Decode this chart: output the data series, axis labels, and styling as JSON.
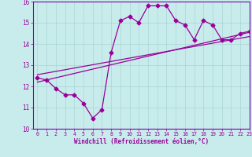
{
  "xlabel": "Windchill (Refroidissement éolien,°C)",
  "background_color": "#c8ecec",
  "grid_color": "#aad4d4",
  "line_color": "#990099",
  "spine_color": "#7700aa",
  "x_data": [
    0,
    1,
    2,
    3,
    4,
    5,
    6,
    7,
    8,
    9,
    10,
    11,
    12,
    13,
    14,
    15,
    16,
    17,
    18,
    19,
    20,
    21,
    22,
    23
  ],
  "y_data": [
    12.4,
    12.3,
    11.9,
    11.6,
    11.6,
    11.2,
    10.5,
    10.9,
    13.6,
    15.1,
    15.3,
    15.0,
    15.8,
    15.8,
    15.8,
    15.1,
    14.9,
    14.2,
    15.1,
    14.9,
    14.2,
    14.2,
    14.5,
    14.6
  ],
  "reg_line1_x": [
    0,
    23
  ],
  "reg_line1_y": [
    12.2,
    14.55
  ],
  "reg_line2_x": [
    0,
    23
  ],
  "reg_line2_y": [
    12.55,
    14.35
  ],
  "ylim": [
    10,
    16
  ],
  "xlim": [
    -0.5,
    23
  ]
}
